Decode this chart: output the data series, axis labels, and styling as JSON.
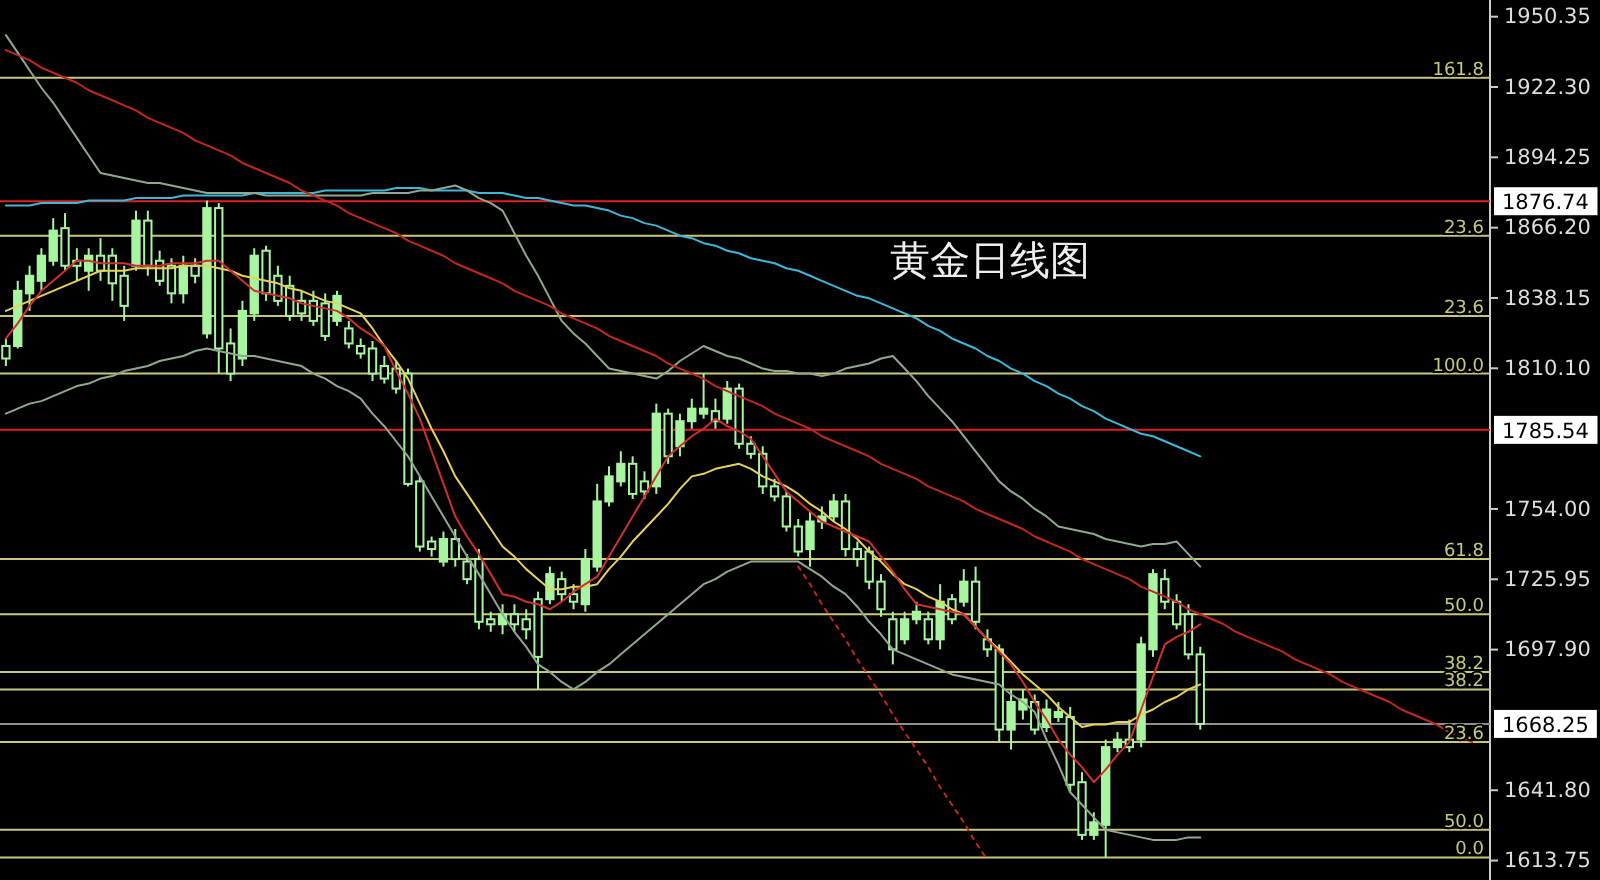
{
  "chart_data": {
    "type": "candlestick",
    "title": "黄金日线图",
    "color": "#a8f5a0",
    "tick_labels": "y",
    "grid": false,
    "categories": [
      null,
      null,
      null,
      null,
      null,
      null,
      null,
      null,
      null,
      null,
      null,
      null,
      null,
      null,
      null,
      null,
      null,
      null,
      null,
      null,
      null,
      null,
      null,
      null,
      null,
      null,
      null,
      null,
      null,
      null,
      null,
      null,
      null,
      null,
      null,
      null,
      null,
      null,
      null,
      null,
      null,
      null,
      null,
      null,
      null,
      null,
      null,
      null,
      null,
      null,
      null,
      null,
      null,
      null,
      null,
      null,
      null,
      null,
      null,
      null,
      null,
      null,
      null,
      null,
      null,
      null,
      null,
      null,
      null,
      null,
      null,
      null,
      null,
      null,
      null,
      null,
      null,
      null,
      null,
      null,
      null,
      null,
      null,
      null,
      null,
      null,
      null,
      null,
      null,
      null,
      null,
      null,
      null,
      null,
      null,
      null,
      null,
      null,
      null,
      null,
      null,
      null,
      null,
      null,
      null,
      null,
      null,
      null,
      null,
      null,
      null,
      null,
      null,
      null,
      null,
      null,
      null,
      null,
      null,
      null,
      null,
      null,
      null,
      null,
      null,
      null
    ],
    "ohlc": [
      [
        1819,
        1822,
        1811,
        1814
      ],
      [
        1819,
        1845,
        1818,
        1841
      ],
      [
        1840,
        1851,
        1833,
        1847
      ],
      [
        1845,
        1858,
        1841,
        1855
      ],
      [
        1853,
        1870,
        1851,
        1865
      ],
      [
        1866,
        1872,
        1849,
        1851
      ],
      [
        1853,
        1858,
        1845,
        1851
      ],
      [
        1849,
        1858,
        1841,
        1855
      ],
      [
        1855,
        1862,
        1845,
        1849
      ],
      [
        1855,
        1858,
        1837,
        1844
      ],
      [
        1847,
        1851,
        1829,
        1835
      ],
      [
        1851,
        1873,
        1849,
        1869
      ],
      [
        1869,
        1873,
        1847,
        1851
      ],
      [
        1853,
        1857,
        1843,
        1845
      ],
      [
        1851,
        1854,
        1836,
        1840
      ],
      [
        1840,
        1855,
        1836,
        1851
      ],
      [
        1851,
        1854,
        1844,
        1847
      ],
      [
        1824,
        1877,
        1822,
        1874
      ],
      [
        1874,
        1876,
        1808,
        1818
      ],
      [
        1820,
        1826,
        1805,
        1808
      ],
      [
        1814,
        1837,
        1811,
        1833
      ],
      [
        1832,
        1858,
        1829,
        1855
      ],
      [
        1857,
        1859,
        1837,
        1840
      ],
      [
        1847,
        1851,
        1835,
        1837
      ],
      [
        1843,
        1847,
        1829,
        1831
      ],
      [
        1837,
        1841,
        1829,
        1832
      ],
      [
        1837,
        1841,
        1827,
        1829
      ],
      [
        1836,
        1840,
        1821,
        1823
      ],
      [
        1829,
        1841,
        1827,
        1839
      ],
      [
        1826,
        1829,
        1818,
        1820
      ],
      [
        1819,
        1822,
        1814,
        1816
      ],
      [
        1818,
        1821,
        1805,
        1808
      ],
      [
        1811,
        1815,
        1804,
        1806
      ],
      [
        1810,
        1813,
        1800,
        1802
      ],
      [
        1808,
        1810,
        1763,
        1764
      ],
      [
        1765,
        1767,
        1737,
        1739
      ],
      [
        1741,
        1743,
        1735,
        1738
      ],
      [
        1733,
        1745,
        1731,
        1742
      ],
      [
        1742,
        1746,
        1731,
        1734
      ],
      [
        1733,
        1736,
        1724,
        1726
      ],
      [
        1734,
        1738,
        1706,
        1709
      ],
      [
        1710,
        1713,
        1705,
        1708
      ],
      [
        1708,
        1716,
        1704,
        1712
      ],
      [
        1712,
        1716,
        1705,
        1708
      ],
      [
        1710,
        1714,
        1702,
        1706
      ],
      [
        1718,
        1721,
        1682,
        1695
      ],
      [
        1718,
        1731,
        1716,
        1728
      ],
      [
        1726,
        1729,
        1717,
        1720
      ],
      [
        1720,
        1724,
        1714,
        1717
      ],
      [
        1716,
        1738,
        1713,
        1734
      ],
      [
        1731,
        1764,
        1729,
        1757
      ],
      [
        1757,
        1771,
        1755,
        1767
      ],
      [
        1765,
        1777,
        1763,
        1772
      ],
      [
        1772,
        1775,
        1758,
        1760
      ],
      [
        1765,
        1769,
        1758,
        1761
      ],
      [
        1763,
        1796,
        1760,
        1792
      ],
      [
        1792,
        1794,
        1772,
        1775
      ],
      [
        1779,
        1792,
        1775,
        1789
      ],
      [
        1789,
        1798,
        1786,
        1794
      ],
      [
        1792,
        1808,
        1790,
        1794
      ],
      [
        1793,
        1798,
        1786,
        1789
      ],
      [
        1790,
        1805,
        1788,
        1802
      ],
      [
        1802,
        1804,
        1778,
        1780
      ],
      [
        1780,
        1783,
        1774,
        1776
      ],
      [
        1776,
        1779,
        1760,
        1763
      ],
      [
        1763,
        1766,
        1757,
        1759
      ],
      [
        1759,
        1761,
        1745,
        1747
      ],
      [
        1747,
        1750,
        1735,
        1737
      ],
      [
        1738,
        1753,
        1731,
        1749
      ],
      [
        1749,
        1755,
        1746,
        1751
      ],
      [
        1751,
        1760,
        1749,
        1757
      ],
      [
        1757,
        1760,
        1735,
        1738
      ],
      [
        1738,
        1741,
        1731,
        1734
      ],
      [
        1737,
        1739,
        1722,
        1725
      ],
      [
        1725,
        1728,
        1711,
        1714
      ],
      [
        1710,
        1713,
        1692,
        1698
      ],
      [
        1702,
        1713,
        1700,
        1710
      ],
      [
        1710,
        1717,
        1708,
        1713
      ],
      [
        1710,
        1713,
        1700,
        1702
      ],
      [
        1702,
        1724,
        1698,
        1717
      ],
      [
        1718,
        1720,
        1708,
        1710
      ],
      [
        1717,
        1730,
        1715,
        1725
      ],
      [
        1725,
        1731,
        1706,
        1709
      ],
      [
        1702,
        1706,
        1695,
        1698
      ],
      [
        1698,
        1700,
        1661,
        1666
      ],
      [
        1666,
        1682,
        1658,
        1677
      ],
      [
        1674,
        1682,
        1670,
        1678
      ],
      [
        1677,
        1680,
        1664,
        1666
      ],
      [
        1667,
        1678,
        1665,
        1674
      ],
      [
        1671,
        1677,
        1669,
        1673
      ],
      [
        1671,
        1675,
        1641,
        1644
      ],
      [
        1645,
        1649,
        1622,
        1624
      ],
      [
        1624,
        1633,
        1622,
        1629
      ],
      [
        1628,
        1662,
        1615,
        1659
      ],
      [
        1659,
        1665,
        1657,
        1662
      ],
      [
        1662,
        1670,
        1657,
        1659
      ],
      [
        1662,
        1703,
        1659,
        1700
      ],
      [
        1698,
        1730,
        1695,
        1728
      ],
      [
        1726,
        1730,
        1714,
        1717
      ],
      [
        1717,
        1720,
        1706,
        1708
      ],
      [
        1712,
        1716,
        1694,
        1696
      ],
      [
        1696,
        1699,
        1666,
        1668.25
      ],
      null,
      null,
      null,
      null,
      null,
      null,
      null,
      null,
      null,
      null,
      null,
      null,
      null,
      null,
      null,
      null,
      null,
      null,
      null,
      null,
      null,
      null,
      null,
      null
    ],
    "series": [
      {
        "type": "line",
        "color": "#3fb7d8",
        "values": [
          1875,
          1875,
          1875,
          1876,
          1876,
          1876,
          1876,
          1877,
          1877,
          1877,
          1877,
          1878,
          1878,
          1878,
          1878,
          1879,
          1879,
          1879,
          1879,
          1879,
          1879,
          1880,
          1880,
          1880,
          1880,
          1880,
          1880,
          1881,
          1881,
          1881,
          1881,
          1881,
          1881,
          1882,
          1882,
          1882,
          1881,
          1881,
          1881,
          1881,
          1880,
          1880,
          1880,
          1879,
          1878,
          1878,
          1877,
          1876,
          1875,
          1875,
          1874,
          1873,
          1871,
          1870,
          1868,
          1867,
          1865,
          1863,
          1862,
          1860,
          1859,
          1857,
          1856,
          1854,
          1853,
          1852,
          1850,
          1849,
          1847,
          1845,
          1843,
          1841,
          1839,
          1838,
          1836,
          1834,
          1832,
          1830,
          1827,
          1825,
          1822,
          1820,
          1818,
          1815,
          1813,
          1810,
          1808,
          1805,
          1803,
          1800,
          1798,
          1795,
          1793,
          1790,
          1788,
          1786,
          1784,
          1783,
          1781,
          1779,
          1777,
          1775,
          null,
          null,
          null,
          null,
          null,
          null,
          null,
          null,
          null,
          null,
          null,
          null,
          null,
          null,
          null,
          null,
          null,
          null,
          null,
          null,
          null,
          null,
          null,
          null
        ]
      },
      {
        "type": "line",
        "color": "#8fa88f",
        "values": [
          1943,
          1936,
          1929,
          1922,
          1916,
          1909,
          1902,
          1895,
          1888,
          1887,
          1886,
          1885,
          1884,
          1884,
          1883,
          1882,
          1881,
          1880,
          1880,
          1880,
          1880,
          1880,
          1879,
          1879,
          1879,
          1879,
          1879,
          1879,
          1879,
          1879,
          1879,
          1880,
          1880,
          1880,
          1880,
          1881,
          1881,
          1882,
          1883,
          1881,
          1878,
          1876,
          1873,
          1864,
          1855,
          1847,
          1838,
          1829,
          1824,
          1820,
          1815,
          1810,
          1809,
          1808,
          1807,
          1806,
          1809,
          1813,
          1816,
          1819,
          1817,
          1815,
          1814,
          1812,
          1810,
          1809,
          1809,
          1808,
          1808,
          1807,
          1808,
          1810,
          1811,
          1812,
          1814,
          1815,
          1810,
          1805,
          1799,
          1794,
          1789,
          1783,
          1777,
          1771,
          1765,
          1761,
          1758,
          1754,
          1751,
          1747,
          1746,
          1745,
          1744,
          1742,
          1741,
          1740,
          1739,
          1740,
          1740,
          1741,
          1736,
          1731,
          null,
          null,
          null,
          null,
          null,
          null,
          null,
          null,
          null,
          null,
          null,
          null,
          null,
          null,
          null,
          null,
          null,
          null,
          null,
          null,
          null,
          null,
          null,
          null
        ]
      },
      {
        "type": "line",
        "color": "#8fa88f",
        "values": [
          1792,
          1794,
          1796,
          1797,
          1799,
          1801,
          1803,
          1804,
          1806,
          1807,
          1809,
          1810,
          1811,
          1813,
          1814,
          1815,
          1817,
          1818,
          1817,
          1816,
          1815,
          1815,
          1814,
          1813,
          1812,
          1811,
          1808,
          1806,
          1803,
          1801,
          1798,
          1792,
          1787,
          1781,
          1775,
          1767,
          1759,
          1751,
          1743,
          1735,
          1728,
          1720,
          1712,
          1705,
          1699,
          1692,
          1689,
          1685,
          1682,
          1685,
          1689,
          1692,
          1696,
          1700,
          1704,
          1708,
          1712,
          1716,
          1720,
          1724,
          1726,
          1729,
          1731,
          1733,
          1733,
          1733,
          1733,
          1733,
          1730,
          1727,
          1723,
          1720,
          1715,
          1709,
          1704,
          1698,
          1696,
          1694,
          1692,
          1690,
          1688,
          1687,
          1686,
          1685,
          1684,
          1680,
          1677,
          1673,
          1662,
          1652,
          1641,
          1636,
          1631,
          1626,
          1625,
          1624,
          1623,
          1622,
          1622,
          1622,
          1623,
          1623,
          null,
          null,
          null,
          null,
          null,
          null,
          null,
          null,
          null,
          null,
          null,
          null,
          null,
          null,
          null,
          null,
          null,
          null,
          null,
          null,
          null,
          null,
          null,
          null
        ]
      },
      {
        "type": "line",
        "color": "#e6d25a",
        "values": [
          1833,
          1835,
          1837,
          1839,
          1841,
          1843,
          1845,
          1847,
          1849,
          1849,
          1849,
          1850,
          1850,
          1850,
          1850,
          1851,
          1851,
          1851,
          1850,
          1849,
          1847,
          1846,
          1845,
          1844,
          1842,
          1841,
          1839,
          1837,
          1836,
          1834,
          1832,
          1826,
          1819,
          1813,
          1806,
          1796,
          1786,
          1777,
          1767,
          1760,
          1753,
          1746,
          1739,
          1735,
          1730,
          1726,
          1722,
          1722,
          1723,
          1723,
          1724,
          1730,
          1735,
          1741,
          1746,
          1751,
          1756,
          1762,
          1767,
          1768,
          1770,
          1771,
          1772,
          1770,
          1767,
          1765,
          1763,
          1760,
          1756,
          1753,
          1749,
          1746,
          1742,
          1737,
          1733,
          1728,
          1724,
          1722,
          1719,
          1717,
          1714,
          1712,
          1707,
          1702,
          1698,
          1693,
          1688,
          1684,
          1680,
          1675,
          1671,
          1667,
          1668,
          1668,
          1669,
          1669,
          1672,
          1674,
          1677,
          1679,
          1682,
          1684,
          null,
          null,
          null,
          null,
          null,
          null,
          null,
          null,
          null,
          null,
          null,
          null,
          null,
          null,
          null,
          null,
          null,
          null,
          null,
          null,
          null,
          null,
          null,
          null
        ]
      },
      {
        "type": "line",
        "color": "#d0302c",
        "values": [
          1822,
          1828,
          1835,
          1841,
          1845,
          1849,
          1853,
          1853,
          1852,
          1852,
          1852,
          1851,
          1851,
          1851,
          1852,
          1852,
          1852,
          1853,
          1853,
          1849,
          1845,
          1841,
          1840,
          1839,
          1838,
          1836,
          1835,
          1834,
          1833,
          1830,
          1826,
          1823,
          1819,
          1809,
          1800,
          1790,
          1777,
          1764,
          1751,
          1743,
          1736,
          1728,
          1720,
          1719,
          1717,
          1716,
          1714,
          1717,
          1721,
          1724,
          1727,
          1735,
          1743,
          1751,
          1759,
          1767,
          1775,
          1779,
          1783,
          1786,
          1790,
          1787,
          1785,
          1782,
          1775,
          1768,
          1761,
          1757,
          1753,
          1749,
          1747,
          1745,
          1743,
          1741,
          1735,
          1729,
          1722,
          1716,
          1715,
          1714,
          1713,
          1712,
          1707,
          1702,
          1697,
          1692,
          1685,
          1677,
          1670,
          1662,
          1656,
          1651,
          1645,
          1650,
          1656,
          1661,
          1674,
          1687,
          1700,
          1703,
          1705,
          1708,
          null,
          null,
          null,
          null,
          null,
          null,
          null,
          null,
          null,
          null,
          null,
          null,
          null,
          null,
          null,
          null,
          null,
          null,
          null,
          null,
          null,
          null,
          null,
          null
        ]
      },
      {
        "type": "line",
        "color": "#c0281e",
        "values": [
          1937,
          1935,
          1933,
          1930,
          1928,
          1926,
          1924,
          1921,
          1919,
          1917,
          1915,
          1913,
          1910,
          1908,
          1906,
          1904,
          1901,
          1899,
          1897,
          1895,
          1892,
          1890,
          1888,
          1886,
          1884,
          1881,
          1879,
          1877,
          1875,
          1872,
          1870,
          1868,
          1866,
          1864,
          1861,
          1859,
          1857,
          1855,
          1852,
          1850,
          1848,
          1846,
          1844,
          1841,
          1839,
          1837,
          1835,
          1832,
          1830,
          1828,
          1826,
          1823,
          1821,
          1819,
          1817,
          1815,
          1812,
          1810,
          1808,
          1806,
          1803,
          1801,
          1799,
          1797,
          1795,
          1792,
          1790,
          1788,
          1786,
          1783,
          1781,
          1779,
          1777,
          1775,
          1772,
          1770,
          1768,
          1766,
          1763,
          1761,
          1759,
          1757,
          1754,
          1752,
          1750,
          1748,
          1746,
          1743,
          1741,
          1739,
          1737,
          1734,
          1732,
          1730,
          1728,
          1726,
          1723,
          1721,
          1719,
          1717,
          1714,
          1712,
          1710,
          1708,
          1705,
          1703,
          1701,
          1699,
          1697,
          1694,
          1692,
          1690,
          1688,
          1685,
          1683,
          1681,
          1679,
          1677,
          1674,
          1672,
          1670,
          1668,
          1665,
          1663,
          1661,
          null
        ]
      },
      {
        "type": "line",
        "color": "#c0281e",
        "line_style": "dotted",
        "values": [
          null,
          null,
          null,
          null,
          null,
          null,
          null,
          null,
          null,
          null,
          null,
          null,
          null,
          null,
          null,
          null,
          null,
          null,
          null,
          null,
          null,
          null,
          null,
          null,
          null,
          null,
          null,
          null,
          null,
          null,
          null,
          null,
          null,
          null,
          null,
          null,
          null,
          null,
          null,
          null,
          null,
          null,
          null,
          null,
          null,
          null,
          null,
          null,
          null,
          null,
          null,
          null,
          null,
          null,
          null,
          null,
          null,
          null,
          null,
          null,
          null,
          null,
          null,
          null,
          null,
          null,
          null,
          1731,
          1724,
          1716,
          1709,
          1702,
          1694,
          1687,
          1680,
          1672,
          1665,
          1658,
          1651,
          1643,
          1636,
          1629,
          1621,
          1614,
          null,
          null,
          null,
          null,
          null,
          null,
          null,
          null,
          null,
          null,
          null,
          null,
          null,
          null,
          null,
          null,
          null,
          null,
          null,
          null,
          null,
          null,
          null,
          null,
          null,
          null,
          null,
          null,
          null,
          null,
          null,
          null,
          null,
          null,
          null,
          null,
          null,
          null,
          null,
          null,
          null,
          null
        ]
      }
    ],
    "ylim": [
      1606,
      1957
    ],
    "yticks": [
      1950.35,
      {
        "value": 1922.3,
        "label": "1922.30"
      },
      1894.25,
      {
        "value": 1866.2,
        "label": "1866.20"
      },
      1838.15,
      {
        "value": 1810.1,
        "label": "1810.10"
      },
      {
        "value": 1754,
        "label": "1754.00"
      },
      1725.95,
      {
        "value": 1697.9,
        "label": "1697.90"
      },
      {
        "value": 1641.8,
        "label": "1641.80"
      },
      1613.75
    ],
    "ref_lines": [
      {
        "axis": "y",
        "value": 1926,
        "color": "#c8c878"
      },
      {
        "axis": "y",
        "value": 1876.74,
        "label": "1876.74",
        "color": "#e02020"
      },
      {
        "axis": "y",
        "value": 1863,
        "color": "#c8c878"
      },
      {
        "axis": "y",
        "value": 1831,
        "color": "#c8c878"
      },
      {
        "axis": "y",
        "value": 1808,
        "color": "#c8c878"
      },
      {
        "axis": "y",
        "value": 1785.54,
        "label": "1785.54",
        "color": "#e02020"
      },
      {
        "axis": "y",
        "value": 1734,
        "color": "#c8c878"
      },
      {
        "axis": "y",
        "value": 1712,
        "color": "#c8c878"
      },
      {
        "axis": "y",
        "value": 1689,
        "color": "#c8c878"
      },
      {
        "axis": "y",
        "value": 1682,
        "color": "#c8c878"
      },
      {
        "axis": "y",
        "value": 1668.25,
        "label": "1668.25",
        "color": "#909090"
      },
      {
        "axis": "y",
        "value": 1661,
        "color": "#c8c878"
      },
      {
        "axis": "y",
        "value": 1626,
        "color": "#c8c878"
      },
      {
        "axis": "y",
        "value": 1615,
        "color": "#c8c878"
      }
    ],
    "annotations": [
      "161.8",
      "23.6",
      "23.6",
      "100.0",
      "61.8",
      "50.0",
      "38.2",
      "38.2",
      "23.6",
      "50.0",
      "0.0"
    ]
  }
}
